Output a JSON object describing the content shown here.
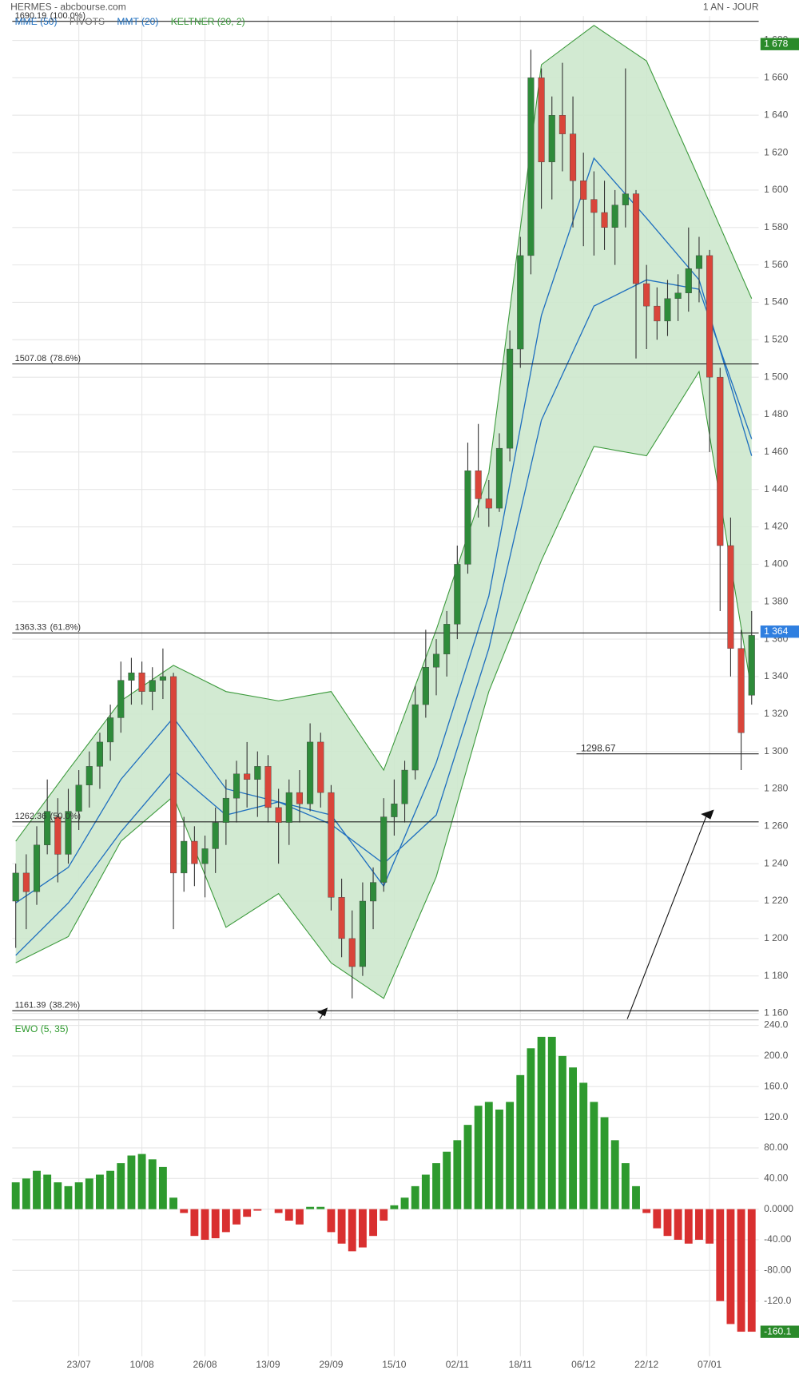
{
  "chart_data": [
    {
      "type": "candlestick",
      "title": "HERMES - abcbourse.com",
      "period": "1 AN - JOUR",
      "indicators": [
        {
          "name": "MME (50)",
          "color": "#1f6fbf"
        },
        {
          "name": "PIVOTS",
          "color": "#777777"
        },
        {
          "name": "MMT (20)",
          "color": "#1f6fbf"
        },
        {
          "name": "KELTNER (20, 2)",
          "color": "#3c9a3c"
        }
      ],
      "categories": [
        null,
        null,
        null,
        null,
        null,
        null,
        "23/07",
        null,
        null,
        null,
        null,
        null,
        "10/08",
        null,
        null,
        null,
        null,
        null,
        "26/08",
        null,
        null,
        null,
        null,
        null,
        "13/09",
        null,
        null,
        null,
        null,
        null,
        "29/09",
        null,
        null,
        null,
        null,
        null,
        "15/10",
        null,
        null,
        null,
        null,
        null,
        "02/11",
        null,
        null,
        null,
        null,
        null,
        "18/11",
        null,
        null,
        null,
        null,
        null,
        "06/12",
        null,
        null,
        null,
        null,
        null,
        "22/12",
        null,
        null,
        null,
        null,
        null,
        "07/01",
        null,
        null,
        null,
        null
      ],
      "up_color": "#2e8b3a",
      "down_color": "#d9453a",
      "candles": [
        [
          1220,
          1240,
          1195,
          1235
        ],
        [
          1235,
          1245,
          1205,
          1225
        ],
        [
          1225,
          1260,
          1218,
          1250
        ],
        [
          1250,
          1285,
          1245,
          1268
        ],
        [
          1265,
          1275,
          1230,
          1245
        ],
        [
          1245,
          1280,
          1240,
          1268
        ],
        [
          1268,
          1290,
          1258,
          1282
        ],
        [
          1282,
          1300,
          1270,
          1292
        ],
        [
          1292,
          1310,
          1280,
          1305
        ],
        [
          1305,
          1325,
          1295,
          1318
        ],
        [
          1318,
          1348,
          1310,
          1338
        ],
        [
          1338,
          1350,
          1325,
          1342
        ],
        [
          1342,
          1348,
          1325,
          1332
        ],
        [
          1332,
          1345,
          1322,
          1338
        ],
        [
          1338,
          1355,
          1328,
          1340
        ],
        [
          1340,
          1342,
          1205,
          1235
        ],
        [
          1235,
          1265,
          1225,
          1252
        ],
        [
          1252,
          1260,
          1228,
          1240
        ],
        [
          1240,
          1255,
          1222,
          1248
        ],
        [
          1248,
          1270,
          1235,
          1262
        ],
        [
          1262,
          1285,
          1250,
          1275
        ],
        [
          1275,
          1295,
          1262,
          1288
        ],
        [
          1288,
          1305,
          1270,
          1285
        ],
        [
          1285,
          1300,
          1265,
          1292
        ],
        [
          1292,
          1298,
          1262,
          1270
        ],
        [
          1270,
          1280,
          1240,
          1262
        ],
        [
          1262,
          1285,
          1250,
          1278
        ],
        [
          1278,
          1290,
          1262,
          1272
        ],
        [
          1272,
          1315,
          1268,
          1305
        ],
        [
          1305,
          1310,
          1270,
          1278
        ],
        [
          1278,
          1282,
          1215,
          1222
        ],
        [
          1222,
          1232,
          1190,
          1200
        ],
        [
          1200,
          1215,
          1168,
          1185
        ],
        [
          1185,
          1230,
          1180,
          1220
        ],
        [
          1220,
          1238,
          1205,
          1230
        ],
        [
          1230,
          1275,
          1225,
          1265
        ],
        [
          1265,
          1285,
          1255,
          1272
        ],
        [
          1272,
          1295,
          1262,
          1290
        ],
        [
          1290,
          1335,
          1285,
          1325
        ],
        [
          1325,
          1365,
          1318,
          1345
        ],
        [
          1345,
          1360,
          1330,
          1352
        ],
        [
          1352,
          1375,
          1340,
          1368
        ],
        [
          1368,
          1410,
          1360,
          1400
        ],
        [
          1400,
          1465,
          1395,
          1450
        ],
        [
          1450,
          1475,
          1425,
          1435
        ],
        [
          1435,
          1445,
          1420,
          1430
        ],
        [
          1430,
          1470,
          1428,
          1462
        ],
        [
          1462,
          1525,
          1455,
          1515
        ],
        [
          1515,
          1575,
          1505,
          1565
        ],
        [
          1565,
          1675,
          1555,
          1660
        ],
        [
          1660,
          1665,
          1590,
          1615
        ],
        [
          1615,
          1650,
          1595,
          1640
        ],
        [
          1640,
          1668,
          1610,
          1630
        ],
        [
          1630,
          1650,
          1580,
          1605
        ],
        [
          1605,
          1620,
          1570,
          1595
        ],
        [
          1595,
          1610,
          1565,
          1588
        ],
        [
          1588,
          1605,
          1568,
          1580
        ],
        [
          1580,
          1600,
          1560,
          1592
        ],
        [
          1592,
          1665,
          1580,
          1598
        ],
        [
          1598,
          1600,
          1510,
          1550
        ],
        [
          1550,
          1560,
          1515,
          1538
        ],
        [
          1538,
          1548,
          1520,
          1530
        ],
        [
          1530,
          1552,
          1522,
          1542
        ],
        [
          1542,
          1555,
          1530,
          1545
        ],
        [
          1545,
          1580,
          1535,
          1558
        ],
        [
          1558,
          1575,
          1540,
          1565
        ],
        [
          1565,
          1568,
          1460,
          1500
        ],
        [
          1500,
          1505,
          1375,
          1410
        ],
        [
          1410,
          1425,
          1340,
          1355
        ],
        [
          1355,
          1365,
          1290,
          1310
        ],
        [
          1330,
          1375,
          1325,
          1362
        ]
      ],
      "overlay_x": [
        0,
        5,
        10,
        15,
        20,
        25,
        30,
        35,
        40,
        45,
        50,
        55,
        60,
        65,
        70
      ],
      "keltner_color": "#3c9a3c",
      "keltner_fill": "#cde8cd",
      "keltner_upper": [
        1252,
        1290,
        1327,
        1346,
        1332,
        1327,
        1332,
        1290,
        1365,
        1449,
        1667,
        1688,
        1669,
        1606,
        1542
      ],
      "keltner_lower": [
        1187,
        1201,
        1252,
        1276,
        1206,
        1224,
        1187,
        1168,
        1233,
        1332,
        1402,
        1463,
        1458,
        1503,
        1332
      ],
      "mmt": [
        1219,
        1238,
        1285,
        1318,
        1280,
        1273,
        1266,
        1228,
        1294,
        1383,
        1533,
        1617,
        1585,
        1552,
        1458
      ],
      "mme": [
        1191,
        1219,
        1257,
        1290,
        1266,
        1273,
        1261,
        1240,
        1266,
        1355,
        1477,
        1538,
        1552,
        1547,
        1467
      ],
      "line_color": "#1f6fbf",
      "levels": [
        {
          "value": 1690.19,
          "pct": "(100.0%)"
        },
        {
          "value": 1507.08,
          "pct": "(78.6%)"
        },
        {
          "value": 1363.33,
          "pct": "(61.8%)"
        },
        {
          "value": 1262.36,
          "pct": "(50.0%)"
        },
        {
          "value": 1161.39,
          "pct": "(38.2%)"
        }
      ],
      "pivot": 1298.67,
      "badges": [
        {
          "value": 1678,
          "label": "1 678",
          "color": "#2a8a2a"
        },
        {
          "value": 1364,
          "label": "1 364",
          "color": "#2f7fe0"
        }
      ],
      "xlim": [
        -0.33,
        70.67
      ],
      "ylim": [
        1157,
        1693
      ],
      "yticks": [
        {
          "value": 1160,
          "label": "1 160"
        },
        {
          "value": 1180,
          "label": "1 180"
        },
        {
          "value": 1200,
          "label": "1 200"
        },
        {
          "value": 1220,
          "label": "1 220"
        },
        {
          "value": 1240,
          "label": "1 240"
        },
        {
          "value": 1260,
          "label": "1 260"
        },
        {
          "value": 1280,
          "label": "1 280"
        },
        {
          "value": 1300,
          "label": "1 300"
        },
        {
          "value": 1320,
          "label": "1 320"
        },
        {
          "value": 1340,
          "label": "1 340"
        },
        {
          "value": 1360,
          "label": "1 360"
        },
        {
          "value": 1380,
          "label": "1 380"
        },
        {
          "value": 1400,
          "label": "1 400"
        },
        {
          "value": 1420,
          "label": "1 420"
        },
        {
          "value": 1440,
          "label": "1 440"
        },
        {
          "value": 1460,
          "label": "1 460"
        },
        {
          "value": 1480,
          "label": "1 480"
        },
        {
          "value": 1500,
          "label": "1 500"
        },
        {
          "value": 1520,
          "label": "1 520"
        },
        {
          "value": 1540,
          "label": "1 540"
        },
        {
          "value": 1560,
          "label": "1 560"
        },
        {
          "value": 1580,
          "label": "1 580"
        },
        {
          "value": 1600,
          "label": "1 600"
        },
        {
          "value": 1620,
          "label": "1 620"
        },
        {
          "value": 1640,
          "label": "1 640"
        },
        {
          "value": 1660,
          "label": "1 660"
        },
        {
          "value": 1680,
          "label": "1 680"
        }
      ],
      "grid": true
    },
    {
      "type": "bar",
      "title": "EWO (5, 35)",
      "pos_color": "#2e9a2e",
      "neg_color": "#d93030",
      "values": [
        35,
        40,
        50,
        45,
        35,
        30,
        35,
        40,
        45,
        50,
        60,
        70,
        72,
        65,
        55,
        15,
        -5,
        -35,
        -40,
        -38,
        -30,
        -20,
        -10,
        -2,
        0,
        -5,
        -15,
        -20,
        3,
        3,
        -30,
        -45,
        -55,
        -50,
        -35,
        -15,
        5,
        15,
        30,
        45,
        60,
        75,
        90,
        110,
        135,
        140,
        130,
        140,
        175,
        210,
        225,
        225,
        200,
        185,
        165,
        140,
        120,
        90,
        60,
        30,
        -5,
        -25,
        -35,
        -40,
        -45,
        -40,
        -45,
        -120,
        -150,
        -160,
        -160
      ],
      "badge": {
        "value": -160.1,
        "color": "#2a8a2a"
      },
      "ylim": [
        -192,
        246
      ],
      "yticks": [
        {
          "value": -120,
          "label": "-120.0"
        },
        {
          "value": -80,
          "label": "-80.00"
        },
        {
          "value": -40,
          "label": "-40.00"
        },
        {
          "value": 0,
          "label": "0.0000"
        },
        {
          "value": 40,
          "label": "40.00"
        },
        {
          "value": 80,
          "label": "80.00"
        },
        {
          "value": 120,
          "label": "120.0"
        },
        {
          "value": 160,
          "label": "160.0"
        },
        {
          "value": 200,
          "label": "200.0"
        },
        {
          "value": 240,
          "label": "240.0"
        }
      ],
      "grid": true
    }
  ]
}
